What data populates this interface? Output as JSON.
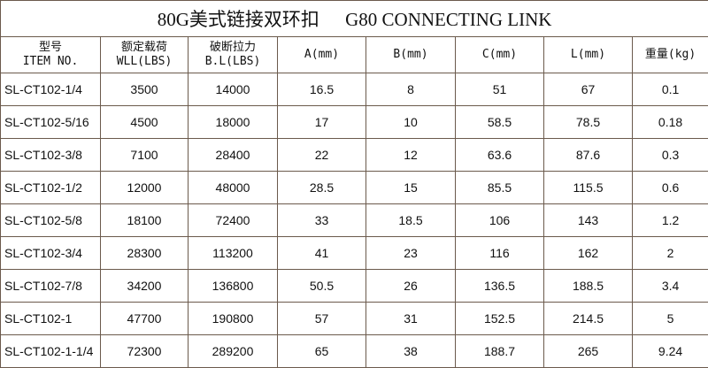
{
  "title": {
    "cn": "80G美式链接双环扣",
    "en": "G80  CONNECTING LINK"
  },
  "headers": [
    {
      "line1": "型号",
      "line2": "ITEM NO."
    },
    {
      "line1": "额定载荷",
      "line2": "WLL(LBS)"
    },
    {
      "line1": "破断拉力",
      "line2": "B.L(LBS)"
    },
    {
      "line1": "A(mm)",
      "line2": ""
    },
    {
      "line1": "B(mm)",
      "line2": ""
    },
    {
      "line1": "C(mm)",
      "line2": ""
    },
    {
      "line1": "L(mm)",
      "line2": ""
    },
    {
      "line1": "重量(kg)",
      "line2": ""
    }
  ],
  "rows": [
    [
      "SL-CT102-1/4",
      "3500",
      "14000",
      "16.5",
      "8",
      "51",
      "67",
      "0.1"
    ],
    [
      "SL-CT102-5/16",
      "4500",
      "18000",
      "17",
      "10",
      "58.5",
      "78.5",
      "0.18"
    ],
    [
      "SL-CT102-3/8",
      "7100",
      "28400",
      "22",
      "12",
      "63.6",
      "87.6",
      "0.3"
    ],
    [
      "SL-CT102-1/2",
      "12000",
      "48000",
      "28.5",
      "15",
      "85.5",
      "115.5",
      "0.6"
    ],
    [
      "SL-CT102-5/8",
      "18100",
      "72400",
      "33",
      "18.5",
      "106",
      "143",
      "1.2"
    ],
    [
      "SL-CT102-3/4",
      "28300",
      "113200",
      "41",
      "23",
      "116",
      "162",
      "2"
    ],
    [
      "SL-CT102-7/8",
      "34200",
      "136800",
      "50.5",
      "26",
      "136.5",
      "188.5",
      "3.4"
    ],
    [
      "SL-CT102-1",
      "47700",
      "190800",
      "57",
      "31",
      "152.5",
      "214.5",
      "5"
    ],
    [
      "SL-CT102-1-1/4",
      "72300",
      "289200",
      "65",
      "38",
      "188.7",
      "265",
      "9.24"
    ]
  ],
  "colors": {
    "border": "#6b5a4c",
    "text": "#111111"
  }
}
